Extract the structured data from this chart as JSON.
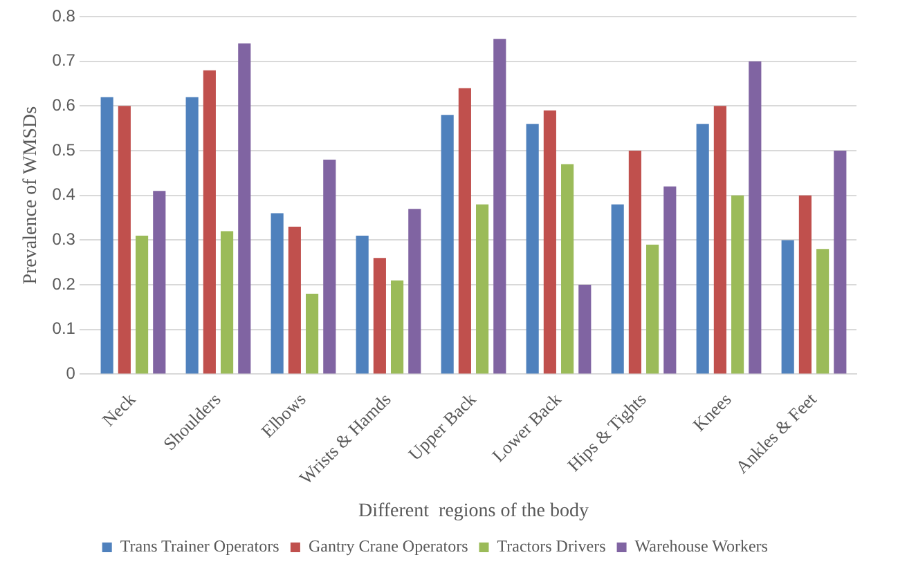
{
  "chart_data": {
    "type": "bar",
    "xlabel": "Different  regions of the body",
    "ylabel": "Prevalence of WMSDs",
    "categories": [
      "Neck",
      "Shoulders",
      "Elbows",
      "Wrists & Hamds",
      "Upper Back",
      "Lower Back",
      "Hips & Tights",
      "Knees",
      "Ankles & Feet"
    ],
    "series": [
      {
        "name": "Trans Trainer Operators",
        "color": "#4f81bd",
        "values": [
          0.62,
          0.62,
          0.36,
          0.31,
          0.58,
          0.56,
          0.38,
          0.56,
          0.3
        ]
      },
      {
        "name": "Gantry Crane Operators",
        "color": "#c0504d",
        "values": [
          0.6,
          0.68,
          0.33,
          0.26,
          0.64,
          0.59,
          0.5,
          0.6,
          0.4
        ]
      },
      {
        "name": "Tractors Drivers",
        "color": "#9bbb59",
        "values": [
          0.31,
          0.32,
          0.18,
          0.21,
          0.38,
          0.47,
          0.29,
          0.4,
          0.28
        ]
      },
      {
        "name": "Warehouse Workers",
        "color": "#8064a2",
        "values": [
          0.41,
          0.74,
          0.48,
          0.37,
          0.75,
          0.2,
          0.42,
          0.7,
          0.5
        ]
      }
    ],
    "ylim": [
      0,
      0.8
    ],
    "yticks": [
      0,
      0.1,
      0.2,
      0.3,
      0.4,
      0.5,
      0.6,
      0.7,
      0.8
    ],
    "grid": "y",
    "legend": "bottom"
  }
}
